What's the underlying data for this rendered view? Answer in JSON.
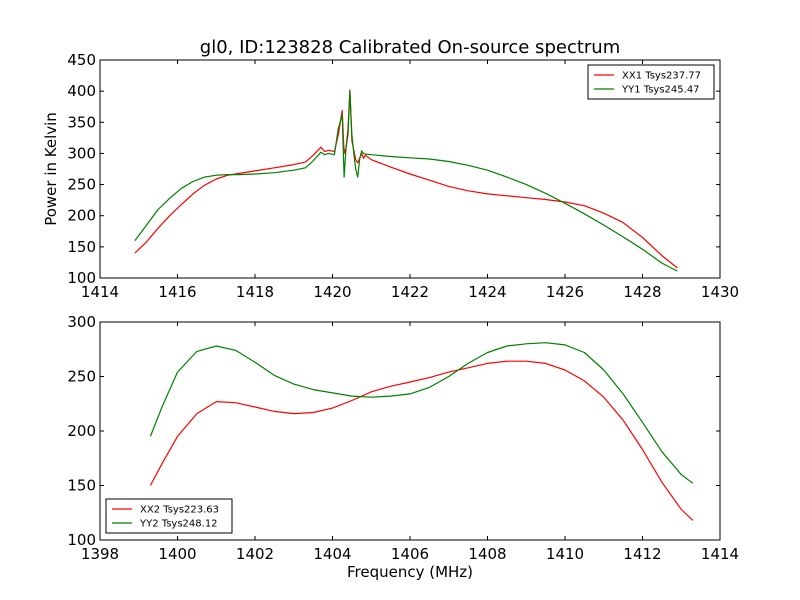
{
  "chart_data": [
    {
      "type": "line",
      "title": "gl0, ID:123828 Calibrated On-source spectrum",
      "xlabel": "",
      "ylabel": "Power in Kelvin",
      "xlim": [
        1414,
        1430
      ],
      "ylim": [
        100,
        450
      ],
      "xticks": [
        "1414",
        "1416",
        "1418",
        "1420",
        "1422",
        "1424",
        "1426",
        "1428",
        "1430"
      ],
      "yticks": [
        "100",
        "150",
        "200",
        "250",
        "300",
        "350",
        "400",
        "450"
      ],
      "legend_position": "top-right",
      "grid": false,
      "series": [
        {
          "name": "XX1 Tsys237.77",
          "color": "#ff0000",
          "x": [
            1414.9,
            1415.2,
            1415.5,
            1415.8,
            1416.1,
            1416.4,
            1416.7,
            1417.0,
            1417.3,
            1417.6,
            1418.0,
            1418.5,
            1419.0,
            1419.3,
            1419.5,
            1419.7,
            1419.8,
            1419.9,
            1420.05,
            1420.15,
            1420.25,
            1420.3,
            1420.35,
            1420.4,
            1420.45,
            1420.5,
            1420.55,
            1420.6,
            1420.65,
            1420.7,
            1420.75,
            1420.8,
            1420.85,
            1421.0,
            1421.5,
            1422.0,
            1422.5,
            1423.0,
            1423.5,
            1424.0,
            1424.5,
            1425.0,
            1425.5,
            1426.0,
            1426.5,
            1427.0,
            1427.5,
            1428.0,
            1428.5,
            1428.9
          ],
          "y": [
            140,
            158,
            180,
            200,
            218,
            235,
            249,
            259,
            265,
            268,
            272,
            277,
            282,
            286,
            297,
            310,
            303,
            305,
            303,
            330,
            369,
            300,
            310,
            340,
            402,
            320,
            305,
            290,
            285,
            292,
            300,
            292,
            297,
            290,
            278,
            267,
            257,
            247,
            240,
            235,
            232,
            229,
            226,
            222,
            216,
            204,
            189,
            165,
            136,
            116
          ]
        },
        {
          "name": "YY1 Tsys245.47",
          "color": "#008000",
          "x": [
            1414.9,
            1415.2,
            1415.5,
            1415.8,
            1416.1,
            1416.4,
            1416.7,
            1417.0,
            1417.3,
            1417.6,
            1418.0,
            1418.5,
            1419.0,
            1419.3,
            1419.5,
            1419.7,
            1419.8,
            1419.9,
            1420.05,
            1420.15,
            1420.25,
            1420.3,
            1420.35,
            1420.4,
            1420.45,
            1420.5,
            1420.55,
            1420.6,
            1420.65,
            1420.7,
            1420.75,
            1420.8,
            1420.85,
            1421.0,
            1421.5,
            1422.0,
            1422.5,
            1423.0,
            1423.5,
            1424.0,
            1424.5,
            1425.0,
            1425.5,
            1426.0,
            1426.5,
            1427.0,
            1427.5,
            1428.0,
            1428.5,
            1428.9
          ],
          "y": [
            160,
            185,
            210,
            228,
            244,
            255,
            262,
            265,
            266,
            266,
            267,
            269,
            273,
            277,
            288,
            302,
            298,
            300,
            298,
            340,
            362,
            262,
            310,
            330,
            400,
            330,
            300,
            275,
            262,
            290,
            304,
            300,
            299,
            298,
            295,
            293,
            291,
            287,
            281,
            273,
            262,
            250,
            236,
            220,
            203,
            185,
            166,
            146,
            124,
            111
          ]
        }
      ]
    },
    {
      "type": "line",
      "title": "",
      "xlabel": "Frequency (MHz)",
      "ylabel": "",
      "xlim": [
        1398,
        1414
      ],
      "ylim": [
        100,
        300
      ],
      "xticks": [
        "1398",
        "1400",
        "1402",
        "1404",
        "1406",
        "1408",
        "1410",
        "1412",
        "1414"
      ],
      "yticks": [
        "100",
        "150",
        "200",
        "250",
        "300"
      ],
      "legend_position": "bottom-left",
      "grid": false,
      "series": [
        {
          "name": "XX2 Tsys223.63",
          "color": "#ff0000",
          "x": [
            1399.3,
            1399.6,
            1400.0,
            1400.5,
            1401.0,
            1401.5,
            1402.0,
            1402.5,
            1403.0,
            1403.5,
            1404.0,
            1404.5,
            1405.0,
            1405.5,
            1406.0,
            1406.5,
            1407.0,
            1407.5,
            1408.0,
            1408.5,
            1409.0,
            1409.5,
            1410.0,
            1410.5,
            1411.0,
            1411.5,
            1412.0,
            1412.5,
            1413.0,
            1413.3
          ],
          "y": [
            150,
            170,
            195,
            216,
            227,
            226,
            222,
            218,
            216,
            217,
            221,
            228,
            236,
            241,
            245,
            249,
            254,
            258,
            262,
            264,
            264,
            262,
            256,
            246,
            231,
            210,
            183,
            153,
            128,
            118
          ]
        },
        {
          "name": "YY2 Tsys248.12",
          "color": "#008000",
          "x": [
            1399.3,
            1399.6,
            1400.0,
            1400.5,
            1401.0,
            1401.5,
            1402.0,
            1402.5,
            1403.0,
            1403.5,
            1404.0,
            1404.5,
            1405.0,
            1405.5,
            1406.0,
            1406.5,
            1407.0,
            1407.5,
            1408.0,
            1408.5,
            1409.0,
            1409.5,
            1410.0,
            1410.5,
            1411.0,
            1411.5,
            1412.0,
            1412.5,
            1413.0,
            1413.3
          ],
          "y": [
            195,
            222,
            254,
            273,
            278,
            274,
            263,
            251,
            243,
            238,
            235,
            232,
            231,
            232,
            234,
            240,
            250,
            262,
            272,
            278,
            280,
            281,
            279,
            272,
            256,
            234,
            208,
            181,
            160,
            152
          ]
        }
      ]
    }
  ]
}
